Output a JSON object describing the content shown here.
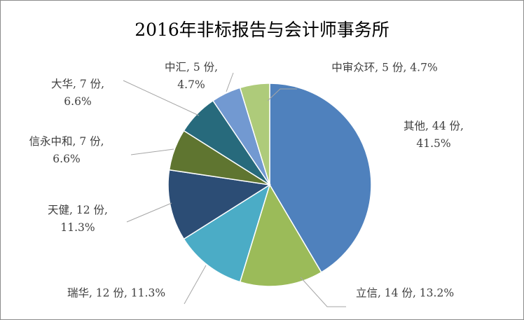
{
  "chart_data": {
    "type": "pie",
    "title": "2016年非标报告与会计师事务所",
    "start_angle_deg": 0,
    "direction": "clockwise",
    "slices": [
      {
        "name": "其他",
        "value": 44,
        "percent": "41.5%",
        "color": "#4f81bd",
        "label_lines": [
          "其他, 44 份,",
          "41.5%"
        ]
      },
      {
        "name": "立信",
        "value": 14,
        "percent": "13.2%",
        "color": "#9bbb59",
        "label_lines": [
          "立信, 14 份, 13.2%"
        ]
      },
      {
        "name": "瑞华",
        "value": 12,
        "percent": "11.3%",
        "color": "#4bacc6",
        "label_lines": [
          "瑞华, 12 份, 11.3%"
        ]
      },
      {
        "name": "天健",
        "value": 12,
        "percent": "11.3%",
        "color": "#2c4d75",
        "label_lines": [
          "天健, 12 份,",
          "11.3%"
        ]
      },
      {
        "name": "信永中和",
        "value": 7,
        "percent": "6.6%",
        "color": "#5f7530",
        "label_lines": [
          "信永中和, 7 份,",
          "6.6%"
        ]
      },
      {
        "name": "大华",
        "value": 7,
        "percent": "6.6%",
        "color": "#276a7c",
        "label_lines": [
          "大华, 7 份,",
          "6.6%"
        ]
      },
      {
        "name": "中汇",
        "value": 5,
        "percent": "4.7%",
        "color": "#7299d1",
        "label_lines": [
          "中汇, 5 份,",
          "4.7%"
        ]
      },
      {
        "name": "中审众环",
        "value": 5,
        "percent": "4.7%",
        "color": "#aecb7a",
        "label_lines": [
          "中审众环, 5 份, 4.7%"
        ]
      }
    ],
    "leader_line_color": "#a6a6a6",
    "legend": "none"
  }
}
